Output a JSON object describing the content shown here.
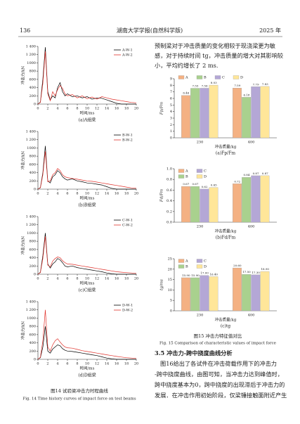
{
  "header": {
    "page": "136",
    "journal": "湖南大学学报(自然科学版)",
    "year": "2025 年"
  },
  "figure14": {
    "caption": "图14  试验梁冲击力时程曲线",
    "caption_en": "Fig. 14  Time history curves of impact force on test beams",
    "panels": [
      {
        "type": "line",
        "ylabel": "冲击力/kN",
        "xlabel": "时间/ms",
        "caption": "(a)A组梁",
        "x": [
          0,
          0.5,
          1,
          1.5,
          2,
          2.5,
          3,
          3.5,
          4,
          4.5,
          5,
          5.5,
          6,
          7,
          8,
          9,
          10,
          11,
          12,
          13,
          14,
          15,
          16,
          17,
          18,
          19,
          20
        ],
        "xlim": [
          0,
          20
        ],
        "xticks": [
          0,
          2,
          4,
          6,
          8,
          10,
          12,
          14,
          16,
          18,
          20
        ],
        "ylim": [
          0,
          1400
        ],
        "yticks": [
          0,
          200,
          400,
          600,
          800,
          1000,
          {
            "value": 1200,
            "label": "1 200"
          },
          {
            "value": 1400,
            "label": "1 400"
          }
        ],
        "series": [
          {
            "name": "A-W-1",
            "color": "#000000",
            "values": [
              0,
              50,
              600,
              1380,
              300,
              100,
              200,
              150,
              400,
              520,
              300,
              200,
              250,
              180,
              200,
              150,
              180,
              120,
              150,
              140,
              100,
              60,
              20,
              0,
              0,
              0,
              0
            ]
          },
          {
            "name": "A-W-2",
            "color": "#e0312b",
            "values": [
              0,
              40,
              500,
              1280,
              250,
              80,
              300,
              200,
              350,
              450,
              380,
              250,
              200,
              230,
              150,
              200,
              130,
              170,
              120,
              180,
              150,
              120,
              100,
              80,
              60,
              40,
              30
            ]
          }
        ]
      },
      {
        "type": "line",
        "ylabel": "冲击力/kN",
        "xlabel": "时间/ms",
        "caption": "(b)B组梁",
        "x": [
          0,
          0.5,
          1,
          1.5,
          2,
          2.5,
          3,
          3.5,
          4,
          4.5,
          5,
          5.5,
          6,
          7,
          8,
          9,
          10,
          11,
          12,
          13,
          14,
          15,
          16,
          17,
          18,
          19,
          20
        ],
        "xlim": [
          0,
          20
        ],
        "xticks": [
          0,
          2,
          4,
          6,
          8,
          10,
          12,
          14,
          16,
          18,
          20
        ],
        "ylim": [
          0,
          1400
        ],
        "yticks": [
          0,
          200,
          400,
          600,
          800,
          1000,
          {
            "value": 1200,
            "label": "1 200"
          },
          {
            "value": 1400,
            "label": "1 400"
          }
        ],
        "series": [
          {
            "name": "B-W-1",
            "color": "#000000",
            "values": [
              0,
              40,
              400,
              1050,
              200,
              150,
              300,
              350,
              450,
              400,
              300,
              250,
              220,
              250,
              200,
              180,
              150,
              140,
              120,
              100,
              60,
              20,
              0,
              0,
              0,
              0,
              0
            ]
          },
          {
            "name": "B-W-2",
            "color": "#e0312b",
            "values": [
              0,
              30,
              350,
              920,
              180,
              200,
              350,
              400,
              500,
              450,
              350,
              300,
              280,
              260,
              240,
              220,
              200,
              190,
              170,
              150,
              130,
              110,
              90,
              70,
              50,
              30,
              20
            ]
          }
        ]
      },
      {
        "type": "line",
        "ylabel": "冲击力/kN",
        "xlabel": "时间/ms",
        "caption": "(c)C组梁",
        "x": [
          0,
          0.5,
          1,
          1.5,
          2,
          2.5,
          3,
          3.5,
          4,
          4.5,
          5,
          5.5,
          6,
          7,
          8,
          9,
          10,
          11,
          12,
          13,
          14,
          15,
          16,
          17,
          18,
          19,
          20
        ],
        "xlim": [
          0,
          20
        ],
        "xticks": [
          0,
          2,
          4,
          6,
          8,
          10,
          12,
          14,
          16,
          18,
          20
        ],
        "ylim": [
          0,
          1400
        ],
        "yticks": [
          0,
          200,
          400,
          600,
          800,
          1000,
          {
            "value": 1200,
            "label": "1 200"
          },
          {
            "value": 1400,
            "label": "1 400"
          }
        ],
        "series": [
          {
            "name": "C-W-1",
            "color": "#000000",
            "values": [
              0,
              50,
              450,
              1000,
              250,
              150,
              250,
              300,
              380,
              350,
              280,
              200,
              180,
              200,
              160,
              140,
              120,
              100,
              80,
              60,
              30,
              10,
              0,
              0,
              0,
              0,
              0
            ]
          },
          {
            "name": "C-W-2",
            "color": "#e0312b",
            "values": [
              0,
              40,
              380,
              920,
              220,
              180,
              320,
              380,
              420,
              400,
              330,
              280,
              250,
              240,
              220,
              200,
              180,
              160,
              140,
              120,
              100,
              80,
              60,
              50,
              40,
              30,
              20
            ]
          }
        ]
      },
      {
        "type": "line",
        "ylabel": "冲击力/kN",
        "xlabel": "时间/ms",
        "caption": "(d)D组梁",
        "x": [
          0,
          0.5,
          1,
          1.5,
          2,
          2.5,
          3,
          3.5,
          4,
          4.5,
          5,
          5.5,
          6,
          7,
          8,
          9,
          10,
          11,
          12,
          13,
          14,
          15,
          16,
          17,
          18,
          19,
          20
        ],
        "xlim": [
          0,
          20
        ],
        "xticks": [
          0,
          2,
          4,
          6,
          8,
          10,
          12,
          14,
          16,
          18,
          20
        ],
        "ylim": [
          0,
          1400
        ],
        "yticks": [
          0,
          200,
          400,
          600,
          800,
          1000,
          {
            "value": 1200,
            "label": "1 200"
          },
          {
            "value": 1400,
            "label": "1 400"
          }
        ],
        "series": [
          {
            "name": "D-W-1",
            "color": "#000000",
            "values": [
              0,
              40,
              300,
              800,
              200,
              150,
              250,
              300,
              350,
              330,
              260,
              220,
              200,
              190,
              170,
              150,
              130,
              110,
              90,
              60,
              30,
              10,
              0,
              0,
              0,
              0,
              0
            ]
          },
          {
            "name": "D-W-2",
            "color": "#e0312b",
            "values": [
              0,
              50,
              450,
              1200,
              300,
              200,
              350,
              450,
              500,
              420,
              350,
              300,
              280,
              270,
              240,
              210,
              190,
              170,
              150,
              130,
              110,
              90,
              70,
              55,
              40,
              30,
              20
            ]
          }
        ]
      }
    ]
  },
  "text_top": [
    "预制梁对于冲击质量的变化相较于现浇梁更为敏",
    "感，对于持续时间 tg，冲击质量的增大对其影响较",
    "小，平均约增长了 2 ms."
  ],
  "figure15": {
    "caption": "图15  冲击力特征值对比",
    "caption_en": "Fig. 15  Comparison of characteristic values of impact force",
    "panels": [
      {
        "type": "bar",
        "ylabel": "Fp/Fm",
        "xlabel": "冲击质量/kg",
        "caption": "(a)Fp/Fm",
        "categories": [
          "230",
          "400"
        ],
        "ylim": [
          0,
          9
        ],
        "yticks": [
          0,
          1,
          2,
          3,
          4,
          5,
          6,
          7,
          8,
          9
        ],
        "series": [
          {
            "name": "A",
            "color": "#f4b183",
            "values": [
              6.46,
              7.59
            ]
          },
          {
            "name": "B",
            "color": "#a9d18e",
            "values": [
              7.55,
              6.18
            ]
          },
          {
            "name": "C",
            "color": "#b4a7d6",
            "values": [
              7.56,
              7.79
            ]
          },
          {
            "name": "D",
            "color": "#ffe699",
            "values": [
              8.03,
              7.83
            ]
          }
        ]
      },
      {
        "type": "bar",
        "ylabel": "Fd/Fm",
        "xlabel": "冲击质量/kg",
        "caption": "(b)Fd/Fm",
        "categories": [
          "230",
          "400"
        ],
        "ylim": [
          0,
          1
        ],
        "yticks": [
          {
            "value": 0,
            "label": "0.0"
          },
          0.2,
          0.4,
          0.6,
          0.8,
          {
            "value": 1,
            "label": "1.0"
          }
        ],
        "series": [
          {
            "name": "A",
            "color": "#f4b183",
            "values": [
              0.67,
              0.72
            ]
          },
          {
            "name": "B",
            "color": "#a9d18e",
            "values": [
              0.67,
              0.84
            ]
          },
          {
            "name": "C",
            "color": "#b4a7d6",
            "values": [
              0.62,
              0.87
            ]
          },
          {
            "name": "D",
            "color": "#ffe699",
            "values": [
              0.65,
              0.87
            ]
          }
        ]
      },
      {
        "type": "bar",
        "ylabel": "tg/ms",
        "xlabel": "冲击质量/kg",
        "caption": "(c)tg",
        "categories": [
          "230",
          "400"
        ],
        "ylim": [
          0,
          25
        ],
        "yticks": [
          0,
          5,
          10,
          15,
          20,
          25
        ],
        "series": [
          {
            "name": "A",
            "color": "#f4b183",
            "values": [
              15.9,
              20.6
            ],
            "value_labels": [
              "15.90",
              "20.60"
            ]
          },
          {
            "name": "B",
            "color": "#a9d18e",
            "values": [
              15.9,
              17.5
            ],
            "value_labels": [
              "15.90",
              "17.50"
            ]
          },
          {
            "name": "C",
            "color": "#b4a7d6",
            "values": [
              17,
              17.3
            ],
            "value_labels": [
              "17.00",
              "17.30"
            ]
          },
          {
            "name": "D",
            "color": "#ffe699",
            "values": [
              16.4,
              18.9
            ],
            "value_labels": [
              "16.40",
              "18.90"
            ]
          }
        ]
      }
    ]
  },
  "section": {
    "heading": "3.5  冲击力-跨中挠度曲线分析",
    "lines": [
      "图16给出了各试件在冲击荷载作用下的冲击力",
      "-跨中挠度曲线，由图可知，当冲击力达到峰值时，",
      "跨中挠度基本为0，跨中挠度的出现滞后于冲击力的",
      "发展．在冲击作用初始阶段，仅梁锤接触面附近产生"
    ]
  }
}
